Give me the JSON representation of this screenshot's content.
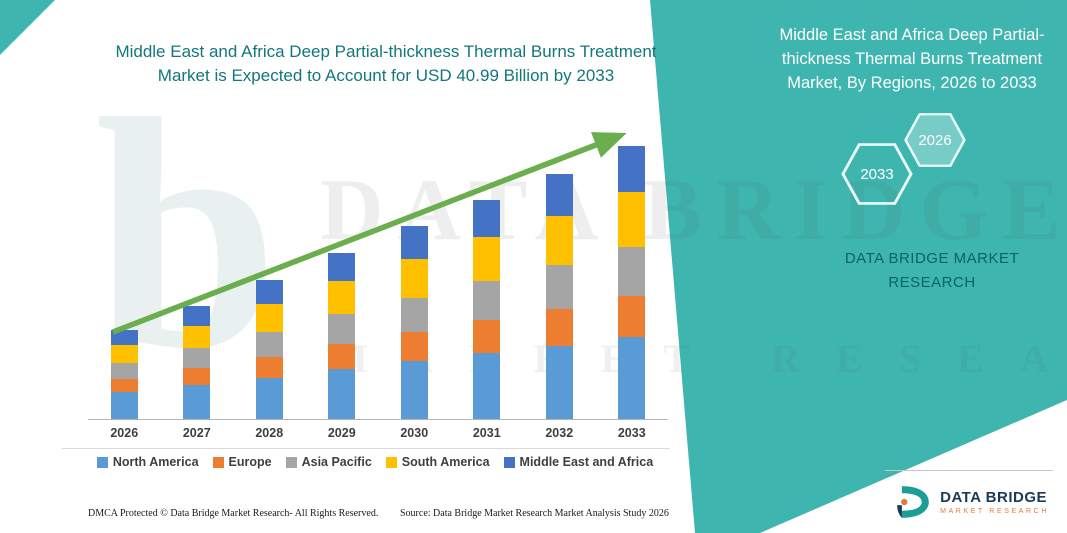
{
  "page": {
    "footer_dmca": "DMCA Protected © Data Bridge Market Research-  All Rights Reserved.",
    "footer_source": "Source: Data Bridge Market Research  Market Analysis Study 2026"
  },
  "panel": {
    "title": "Middle East and Africa Deep Partial-thickness Thermal Burns Treatment Market, By Regions, 2026 to 2033",
    "hex_back_label": "2033",
    "hex_front_label": "2026",
    "brand_text": "DATA BRIDGE MARKET RESEARCH",
    "background_color": "#3eb6af",
    "brand_text_color": "#0b6460"
  },
  "logo": {
    "name": "DATA BRIDGE",
    "subtitle": "MARKET RESEARCH"
  },
  "watermark": {
    "line1": "DATA BRIDGE",
    "line2": "MARKET RESEARCH",
    "glyph": "b"
  },
  "chart_data": {
    "type": "bar",
    "stacked": true,
    "title": "Middle East and Africa Deep Partial-thickness Thermal Burns Treatment Market is Expected to Account for USD 40.99 Billion by 2033",
    "title_color": "#12777c",
    "categories": [
      "2026",
      "2027",
      "2028",
      "2029",
      "2030",
      "2031",
      "2032",
      "2033"
    ],
    "series": [
      {
        "name": "North America",
        "color": "#5B9BD5",
        "values": [
          4.0,
          5.1,
          6.2,
          7.5,
          8.7,
          9.9,
          11.0,
          12.3
        ]
      },
      {
        "name": "Europe",
        "color": "#ED7D31",
        "values": [
          2.0,
          2.5,
          3.1,
          3.7,
          4.3,
          4.9,
          5.5,
          6.1
        ]
      },
      {
        "name": "Asia Pacific",
        "color": "#A5A5A5",
        "values": [
          2.4,
          3.0,
          3.7,
          4.5,
          5.2,
          5.9,
          6.6,
          7.4
        ]
      },
      {
        "name": "South America",
        "color": "#FFC000",
        "values": [
          2.7,
          3.4,
          4.2,
          5.0,
          5.8,
          6.6,
          7.4,
          8.2
        ]
      },
      {
        "name": "Middle East and Africa",
        "color": "#4472C4",
        "values": [
          2.2,
          2.9,
          3.6,
          4.2,
          4.9,
          5.6,
          6.3,
          7.0
        ]
      }
    ],
    "totals_estimated": [
      13.3,
      16.9,
      20.8,
      24.9,
      28.9,
      32.9,
      36.8,
      40.99
    ],
    "value_2033_billion_usd": 40.99,
    "ylim": [
      0,
      42
    ],
    "grid": false,
    "legend_position": "bottom",
    "trend_arrow": true,
    "trend_color": "#6aae4d",
    "xlabel": "",
    "ylabel": ""
  }
}
